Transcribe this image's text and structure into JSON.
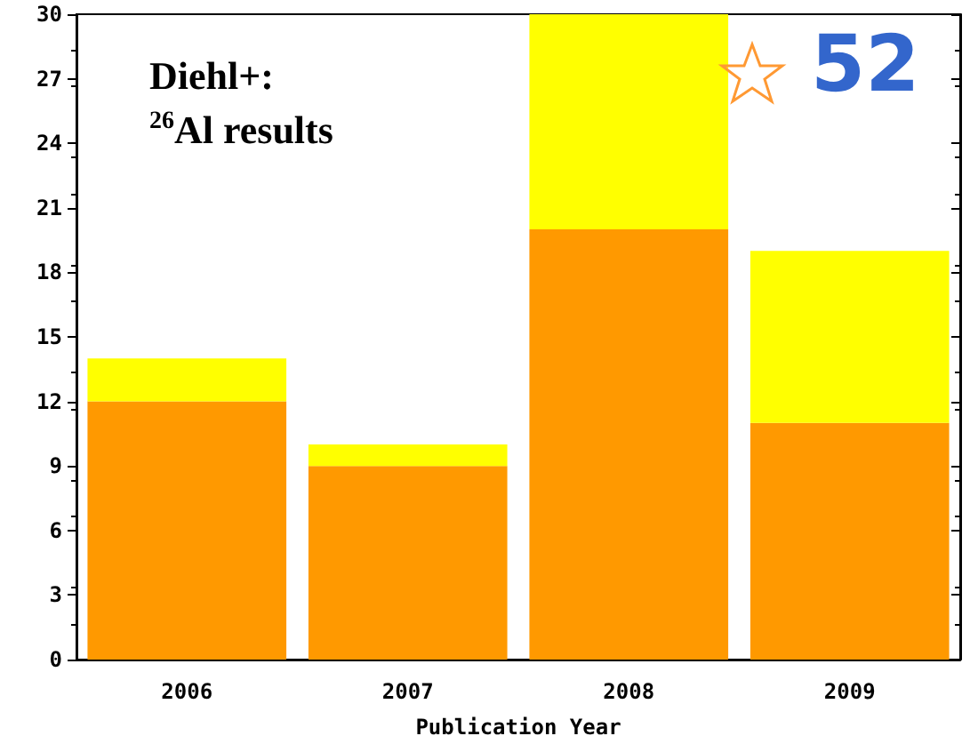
{
  "chart_data": {
    "type": "bar",
    "stacked": true,
    "xlabel": "Publication Year",
    "categories": [
      "2006",
      "2007",
      "2008",
      "2009"
    ],
    "series": [
      {
        "color": "#ff9900",
        "values": [
          12,
          9,
          20,
          11
        ]
      },
      {
        "color": "#ffff00",
        "values": [
          2,
          1,
          10,
          8
        ]
      }
    ],
    "ylim": [
      0,
      30
    ],
    "yticks": [
      0,
      3,
      6,
      9,
      12,
      15,
      18,
      21,
      24,
      27,
      30
    ],
    "grid": false,
    "annotations": [
      "Diehl+:\n$^{26}$Al results",
      "52"
    ]
  }
}
